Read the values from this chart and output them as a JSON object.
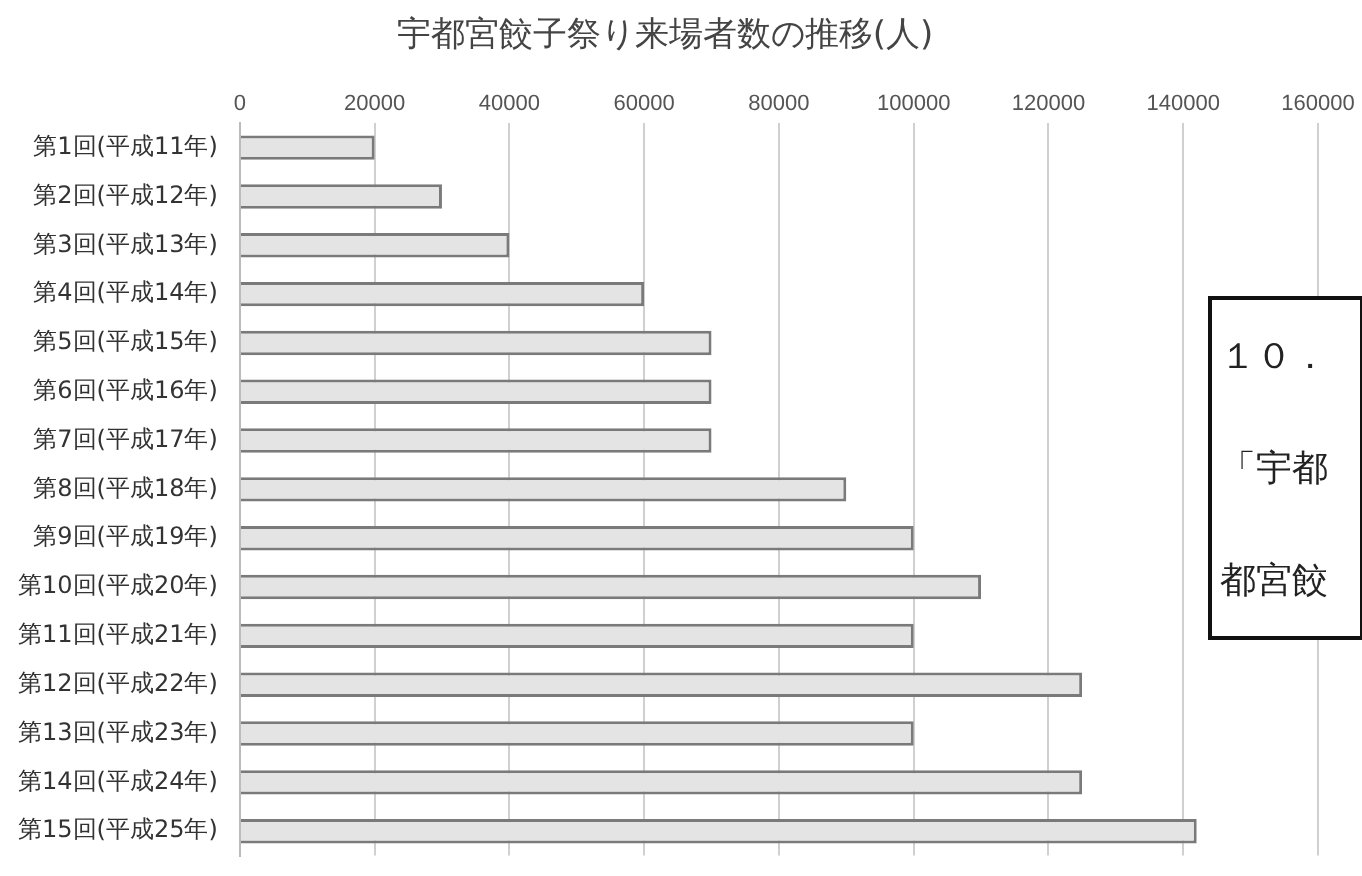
{
  "chart_data": {
    "type": "bar",
    "orientation": "horizontal",
    "title": "宇都宮餃子祭り来場者数の推移(人)",
    "categories": [
      "第1回(平成11年)",
      "第2回(平成12年)",
      "第3回(平成13年)",
      "第4回(平成14年)",
      "第5回(平成15年)",
      "第6回(平成16年)",
      "第7回(平成17年)",
      "第8回(平成18年)",
      "第9回(平成19年)",
      "第10回(平成20年)",
      "第11回(平成21年)",
      "第12回(平成22年)",
      "第13回(平成23年)",
      "第14回(平成24年)",
      "第15回(平成25年)"
    ],
    "values": [
      20000,
      30000,
      40000,
      60000,
      70000,
      70000,
      70000,
      90000,
      100000,
      110000,
      100000,
      125000,
      100000,
      125000,
      142000
    ],
    "color": "#e4e4e4",
    "xlim": [
      0,
      160000
    ],
    "xticks": [
      0,
      20000,
      40000,
      60000,
      80000,
      100000,
      120000,
      140000,
      160000
    ],
    "grid": "x",
    "legend": false,
    "annotations": [
      "１０．",
      "「宇都",
      "都宮餃"
    ]
  }
}
